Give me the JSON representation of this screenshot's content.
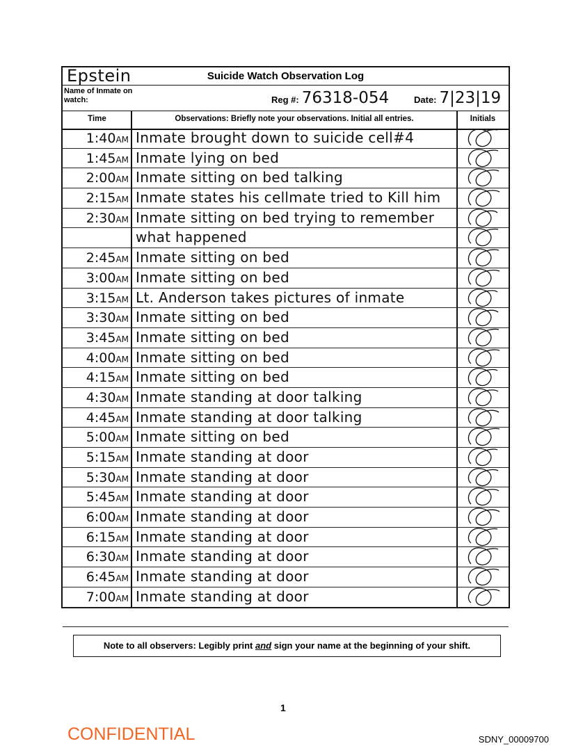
{
  "form": {
    "title": "Suicide Watch Observation Log",
    "inmate_name": "Epstein",
    "name_label": "Name of Inmate on watch:",
    "reg_label": "Reg #:",
    "reg_value": "76318-054",
    "date_label": "Date:",
    "date_value": "7|23|19",
    "col_time": "Time",
    "col_observations": "Observations:  Briefly note your observations.  Initial all entries.",
    "col_initials": "Initials",
    "entries": [
      {
        "time": "1:40",
        "ampm": "AM",
        "obs": "Inmate brought down to suicide cell#4"
      },
      {
        "time": "1:45",
        "ampm": "AM",
        "obs": "Inmate lying on bed"
      },
      {
        "time": "2:00",
        "ampm": "AM",
        "obs": "Inmate sitting on bed talking"
      },
      {
        "time": "2:15",
        "ampm": "AM",
        "obs": "Inmate states his cellmate tried to Kill him"
      },
      {
        "time": "2:30",
        "ampm": "AM",
        "obs": "Inmate sitting on bed trying to remember"
      },
      {
        "time": "",
        "ampm": "",
        "obs": "what happened"
      },
      {
        "time": "2:45",
        "ampm": "AM",
        "obs": "Inmate sitting on bed"
      },
      {
        "time": "3:00",
        "ampm": "AM",
        "obs": "Inmate sitting on bed"
      },
      {
        "time": "3:15",
        "ampm": "AM",
        "obs": "Lt. Anderson takes pictures of inmate"
      },
      {
        "time": "3:30",
        "ampm": "AM",
        "obs": "Inmate sitting on bed"
      },
      {
        "time": "3:45",
        "ampm": "AM",
        "obs": "Inmate sitting on bed"
      },
      {
        "time": "4:00",
        "ampm": "AM",
        "obs": "Inmate sitting on bed"
      },
      {
        "time": "4:15",
        "ampm": "AM",
        "obs": "Inmate sitting on bed"
      },
      {
        "time": "4:30",
        "ampm": "AM",
        "obs": "Inmate standing at door talking"
      },
      {
        "time": "4:45",
        "ampm": "AM",
        "obs": "Inmate standing at door talking"
      },
      {
        "time": "5:00",
        "ampm": "AM",
        "obs": "Inmate sitting on bed"
      },
      {
        "time": "5:15",
        "ampm": "AM",
        "obs": "Inmate standing at door"
      },
      {
        "time": "5:30",
        "ampm": "AM",
        "obs": "Inmate standing at door"
      },
      {
        "time": "5:45",
        "ampm": "AM",
        "obs": "Inmate standing at door"
      },
      {
        "time": "6:00",
        "ampm": "AM",
        "obs": "Inmate standing at door"
      },
      {
        "time": "6:15",
        "ampm": "AM",
        "obs": "Inmate standing at door"
      },
      {
        "time": "6:30",
        "ampm": "AM",
        "obs": "Inmate standing at door"
      },
      {
        "time": "6:45",
        "ampm": "AM",
        "obs": "Inmate standing at door"
      },
      {
        "time": "7:00",
        "ampm": "AM",
        "obs": "Inmate standing at door"
      },
      {
        "time": "",
        "ampm": "",
        "obs": ""
      }
    ]
  },
  "note": {
    "pre": "Note to all observers: Legibly print ",
    "em": "and",
    "post": " sign your name at the beginning of your shift."
  },
  "page_number": "1",
  "confidential": "CONFIDENTIAL",
  "bates": "SDNY_00009700",
  "colors": {
    "confidential": "#f26522"
  }
}
